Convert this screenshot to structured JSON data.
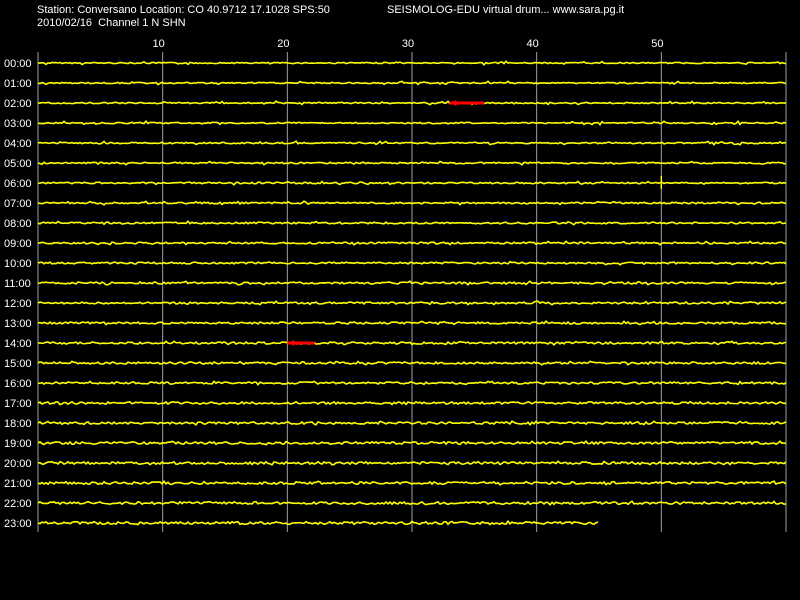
{
  "header": {
    "station_line": "Station: Conversano Location: CO 40.9712 17.1028 SPS:50",
    "date_line": "2010/02/16  Channel 1 N SHN",
    "app_line": "SEISMOLOG-EDU virtual drum... www.sara.pg.it"
  },
  "colors": {
    "background": "#000000",
    "trace": "#ffff00",
    "event": "#ff0000",
    "grid": "#a0a0a0",
    "text": "#ffffff"
  },
  "chart_data": {
    "type": "line",
    "title": "",
    "xlabel": "",
    "ylabel": "",
    "xlim": [
      0,
      60
    ],
    "x_ticks": [
      10,
      20,
      30,
      40,
      50
    ],
    "grid": true,
    "hours": [
      "00:00",
      "01:00",
      "02:00",
      "03:00",
      "04:00",
      "05:00",
      "06:00",
      "07:00",
      "08:00",
      "09:00",
      "10:00",
      "11:00",
      "12:00",
      "13:00",
      "14:00",
      "15:00",
      "16:00",
      "17:00",
      "18:00",
      "19:00",
      "20:00",
      "21:00",
      "22:00",
      "23:00"
    ],
    "last_row_end_minute": 45,
    "events": [
      {
        "hour": "02:00",
        "start_minute": 33,
        "end_minute": 35.8
      },
      {
        "hour": "14:00",
        "start_minute": 20,
        "end_minute": 22.2
      }
    ],
    "spikes": [
      {
        "hour": "06:00",
        "minute": 50
      }
    ]
  }
}
